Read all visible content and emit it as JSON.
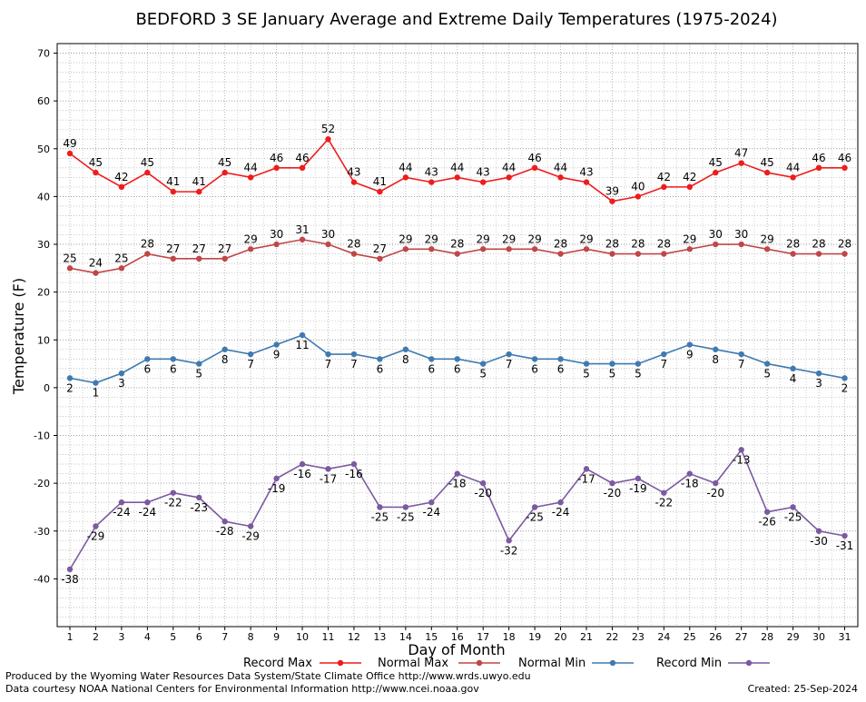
{
  "chart_data": {
    "type": "line",
    "title": "BEDFORD 3 SE January Average and Extreme Daily Temperatures (1975-2024)",
    "xlabel": "Day of Month",
    "ylabel": "Temperature (F)",
    "ylim": [
      -50,
      72
    ],
    "yticks": [
      70,
      60,
      50,
      40,
      30,
      20,
      10,
      0,
      -10,
      -20,
      -30,
      -40
    ],
    "grid": true,
    "x": [
      1,
      2,
      3,
      4,
      5,
      6,
      7,
      8,
      9,
      10,
      11,
      12,
      13,
      14,
      15,
      16,
      17,
      18,
      19,
      20,
      21,
      22,
      23,
      24,
      25,
      26,
      27,
      28,
      29,
      30,
      31
    ],
    "series": [
      {
        "name": "Record Max",
        "color": "#ee1c1c",
        "values": [
          49,
          45,
          42,
          45,
          41,
          41,
          45,
          44,
          46,
          46,
          52,
          43,
          41,
          44,
          43,
          44,
          43,
          44,
          46,
          44,
          43,
          39,
          40,
          42,
          42,
          45,
          47,
          45,
          44,
          46,
          46
        ]
      },
      {
        "name": "Normal Max",
        "color": "#c04747",
        "values": [
          25,
          24,
          25,
          28,
          27,
          27,
          27,
          29,
          30,
          31,
          30,
          28,
          27,
          29,
          29,
          28,
          29,
          29,
          29,
          28,
          29,
          28,
          28,
          28,
          29,
          30,
          30,
          29,
          28,
          28,
          28
        ]
      },
      {
        "name": "Normal Min",
        "color": "#3f7ab0",
        "values": [
          2,
          1,
          3,
          6,
          6,
          5,
          8,
          7,
          9,
          11,
          7,
          7,
          6,
          8,
          6,
          6,
          5,
          7,
          6,
          6,
          5,
          5,
          5,
          7,
          9,
          8,
          7,
          5,
          4,
          3,
          2
        ]
      },
      {
        "name": "Record Min",
        "color": "#7b5aa0",
        "values": [
          -38,
          -29,
          -24,
          -24,
          -22,
          -23,
          -28,
          -29,
          -19,
          -16,
          -17,
          -16,
          -25,
          -25,
          -24,
          -18,
          -20,
          -32,
          -25,
          -24,
          -17,
          -20,
          -19,
          -22,
          -18,
          -20,
          -13,
          -26,
          -25,
          -30,
          -31
        ]
      }
    ]
  },
  "footer": {
    "line1": "Produced by the Wyoming Water Resources Data System/State Climate Office http://www.wrds.uwyo.edu",
    "line2": "Data courtesy NOAA National Centers for Environmental Information http://www.ncei.noaa.gov",
    "created": "Created:  25-Sep-2024"
  }
}
